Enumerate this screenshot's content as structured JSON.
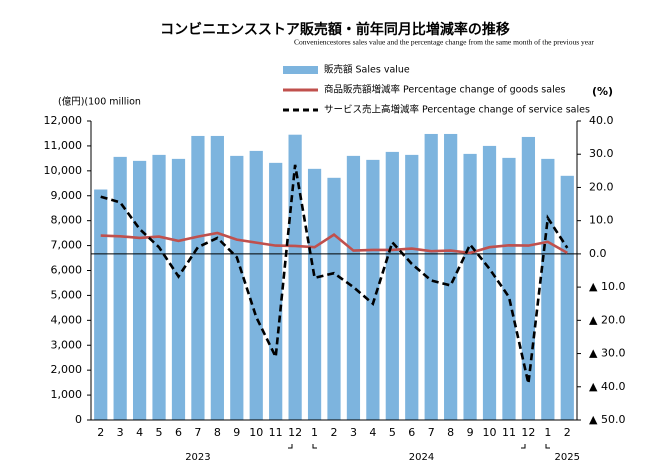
{
  "chart_data": {
    "type": "bar-line",
    "title": "コンビニエンスストア販売額・前年同月比増減率の推移",
    "subtitle": "Conveniencestores sales value and the percentage change from the same month of the previous year",
    "y_label": "(億円)(100  million",
    "y2_label": "(%)",
    "categories": [
      "2",
      "3",
      "4",
      "5",
      "6",
      "7",
      "8",
      "9",
      "10",
      "11",
      "12",
      "1",
      "2",
      "3",
      "4",
      "5",
      "6",
      "7",
      "8",
      "9",
      "10",
      "11",
      "12",
      "1",
      "2"
    ],
    "year_labels": [
      "2023",
      "2024",
      "2025"
    ],
    "series": [
      {
        "name": "販売額 Sales value",
        "type": "bar",
        "color": "#7db4de",
        "axis": "y",
        "values": [
          9250,
          10560,
          10400,
          10640,
          10480,
          11400,
          11400,
          10600,
          10800,
          10320,
          11450,
          10080,
          9720,
          10600,
          10440,
          10760,
          10640,
          11480,
          11480,
          10680,
          11000,
          10520,
          11360,
          10480,
          9800
        ]
      },
      {
        "name": "商品販売額増減率 Percentage change of goods sales",
        "type": "line",
        "color": "#c0504d",
        "dashed": false,
        "axis": "y2",
        "values": [
          5.5,
          5.3,
          4.8,
          5.2,
          3.9,
          5.2,
          6.3,
          4.3,
          3.4,
          2.5,
          2.4,
          2.0,
          5.8,
          1.0,
          1.2,
          1.2,
          1.6,
          0.8,
          1.0,
          0.3,
          2.0,
          2.6,
          2.5,
          3.6,
          0.3
        ]
      },
      {
        "name": "サービス売上高増減率 Percentage change of service sales",
        "type": "line",
        "color": "#000000",
        "dashed": true,
        "axis": "y2",
        "values": [
          17.2,
          15.5,
          7.5,
          2.0,
          -6.8,
          2.0,
          4.8,
          -1.0,
          -19,
          -31,
          26.8,
          -7.2,
          -5.8,
          -10,
          -15,
          3.5,
          -3,
          -8,
          -9.5,
          2.8,
          -4.5,
          -13,
          -39,
          10.8,
          1.8
        ]
      }
    ],
    "ylim": [
      0,
      12000
    ],
    "yticks": [
      0,
      {
        "value": 1000,
        "label": "1,000"
      },
      {
        "value": 2000,
        "label": "2,000"
      },
      {
        "value": 3000,
        "label": "3,000"
      },
      {
        "value": 4000,
        "label": "4,000"
      },
      {
        "value": 5000,
        "label": "5,000"
      },
      {
        "value": 6000,
        "label": "6,000"
      },
      {
        "value": 7000,
        "label": "7,000"
      },
      {
        "value": 8000,
        "label": "8,000"
      },
      {
        "value": 9000,
        "label": "9,000"
      },
      {
        "value": 10000,
        "label": "10,000"
      },
      {
        "value": 11000,
        "label": "11,000"
      },
      {
        "value": 12000,
        "label": "12,000"
      }
    ],
    "y2lim": [
      -50,
      40
    ],
    "y2ticks": [
      {
        "value": 40,
        "label": "40.0"
      },
      {
        "value": 30,
        "label": "30.0"
      },
      {
        "value": 20,
        "label": "20.0"
      },
      {
        "value": 10,
        "label": "10.0"
      },
      {
        "value": 0,
        "label": "0.0"
      },
      {
        "value": -10,
        "label": "▲ 10.0"
      },
      {
        "value": -20,
        "label": "▲ 20.0"
      },
      {
        "value": -30,
        "label": "▲ 30.0"
      },
      {
        "value": -40,
        "label": "▲ 40.0"
      },
      {
        "value": -50,
        "label": "▲ 50.0"
      }
    ],
    "zero_line": true
  }
}
